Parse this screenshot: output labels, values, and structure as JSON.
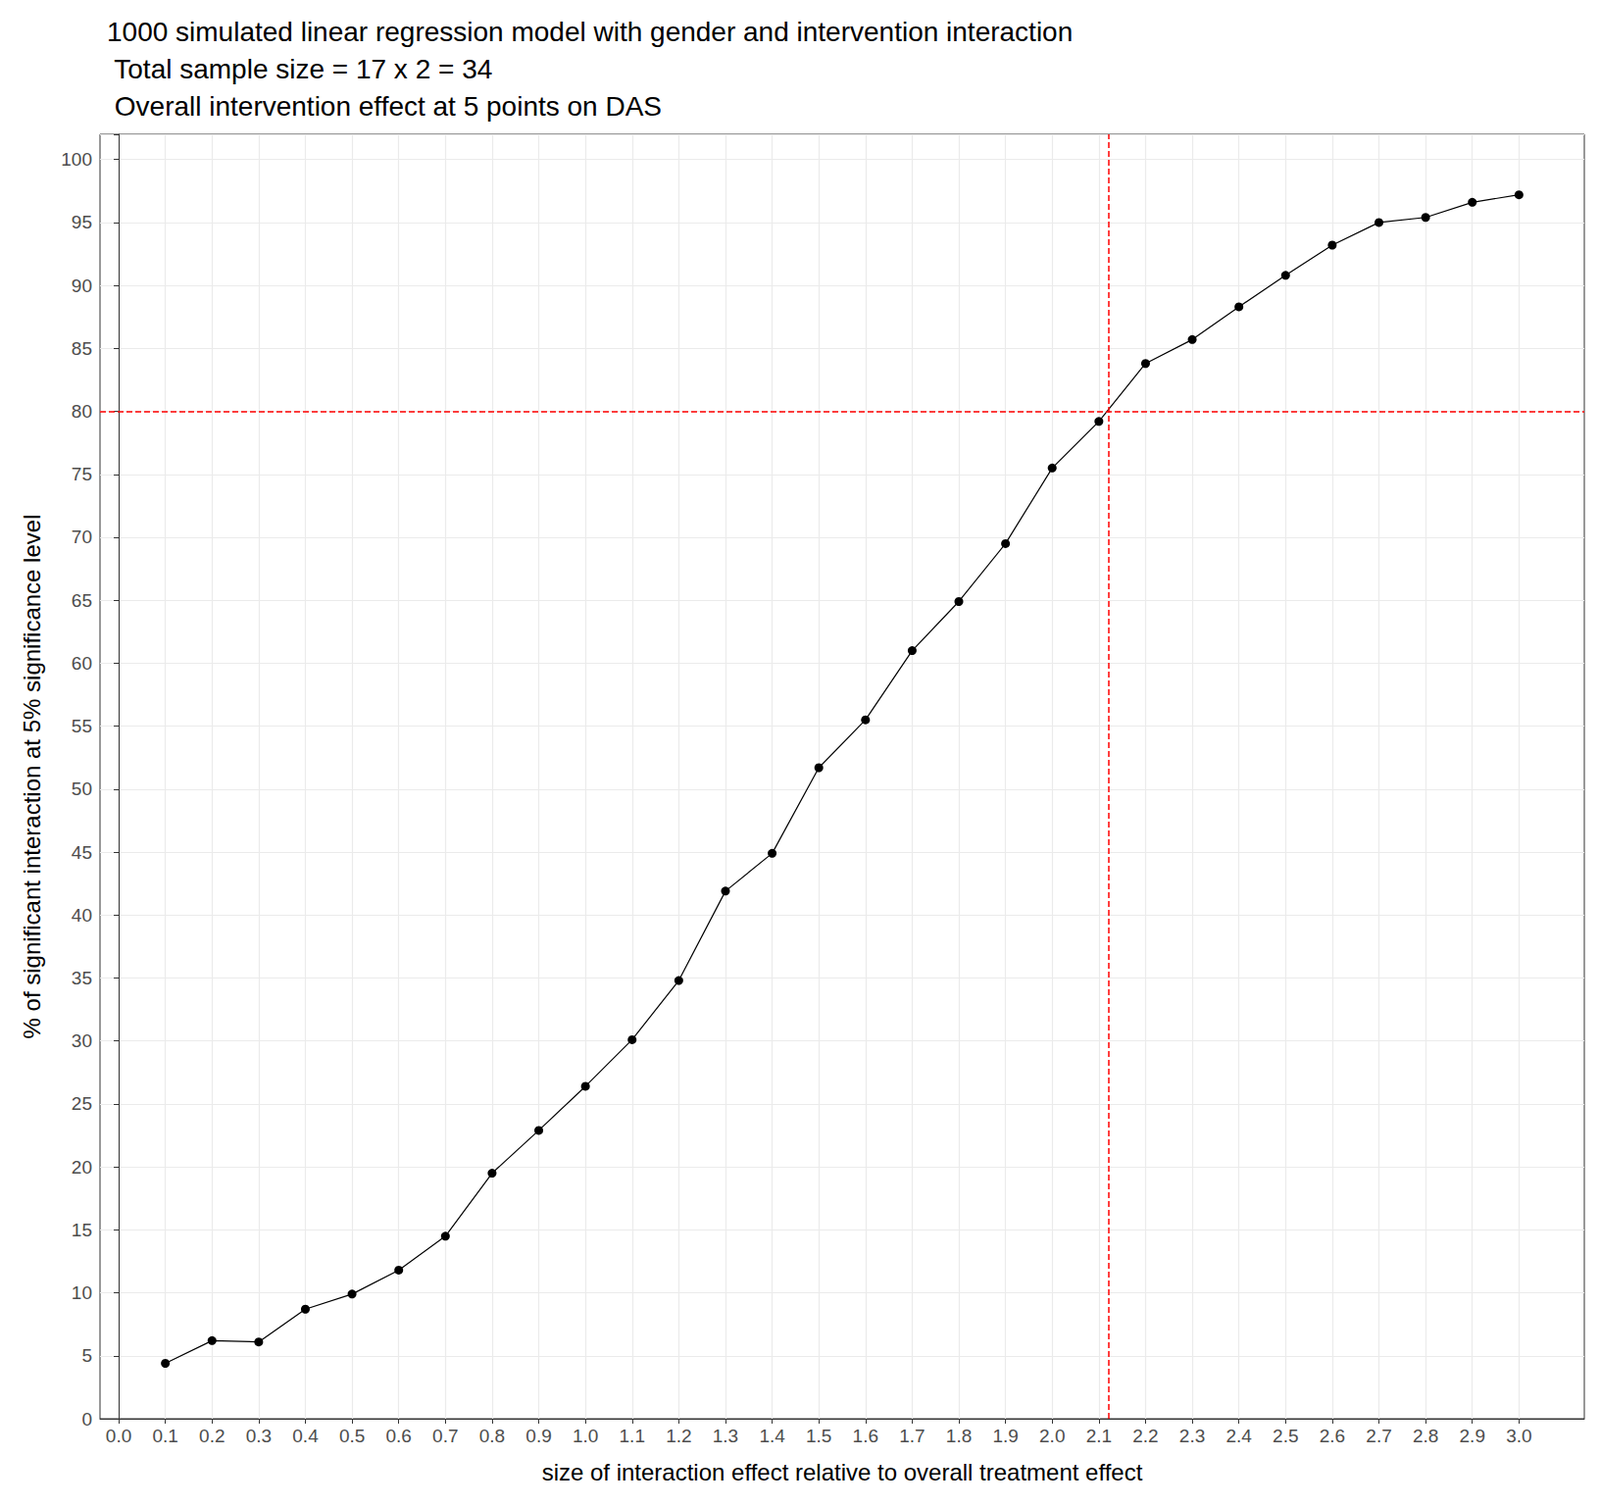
{
  "chart_data": {
    "type": "line",
    "title": "1000 simulated linear regression model with gender and intervention interaction\n Total sample size = 17 x 2 = 34\n Overall intervention effect at 5 points on DAS",
    "x_label": "size of interaction effect relative to overall treatment effect",
    "y_label": "% of significant interaction at 5% significance level",
    "x": [
      0.1,
      0.2,
      0.3,
      0.4,
      0.5,
      0.6,
      0.7,
      0.8,
      0.9,
      1.0,
      1.1,
      1.2,
      1.3,
      1.4,
      1.5,
      1.6,
      1.7,
      1.8,
      1.9,
      2.0,
      2.1,
      2.2,
      2.3,
      2.4,
      2.5,
      2.6,
      2.7,
      2.8,
      2.9,
      3.0
    ],
    "values": [
      4.4,
      6.2,
      6.1,
      8.7,
      9.9,
      11.8,
      14.5,
      19.5,
      22.9,
      26.4,
      30.1,
      34.8,
      41.9,
      44.9,
      51.7,
      55.5,
      61.0,
      64.9,
      69.5,
      75.5,
      79.2,
      83.8,
      85.7,
      88.3,
      90.8,
      93.2,
      95.0,
      95.4,
      96.6,
      97.2
    ],
    "color": "#000000",
    "marker": "circle",
    "line_style": "solid",
    "hline": {
      "value": 80,
      "color": "#ff0000",
      "line_style": "dashed"
    },
    "vline": {
      "value": 2.12,
      "color": "#ff0000",
      "line_style": "dashed"
    },
    "xlim": [
      -0.04,
      3.14
    ],
    "xticks": [
      {
        "value": 0,
        "label": "0.0"
      },
      0.1,
      0.2,
      0.3,
      0.4,
      0.5,
      0.6,
      0.7,
      0.8,
      0.9,
      {
        "value": 1,
        "label": "1.0"
      },
      1.1,
      1.2,
      1.3,
      1.4,
      1.5,
      1.6,
      1.7,
      1.8,
      1.9,
      {
        "value": 2,
        "label": "2.0"
      },
      2.1,
      2.2,
      2.3,
      2.4,
      2.5,
      2.6,
      2.7,
      2.8,
      2.9,
      {
        "value": 3,
        "label": "3.0"
      }
    ],
    "ylim": [
      0,
      102
    ],
    "yticks": [
      0,
      5,
      10,
      15,
      20,
      25,
      30,
      35,
      40,
      45,
      50,
      55,
      60,
      65,
      70,
      75,
      80,
      85,
      90,
      95,
      100
    ],
    "grid": true
  }
}
